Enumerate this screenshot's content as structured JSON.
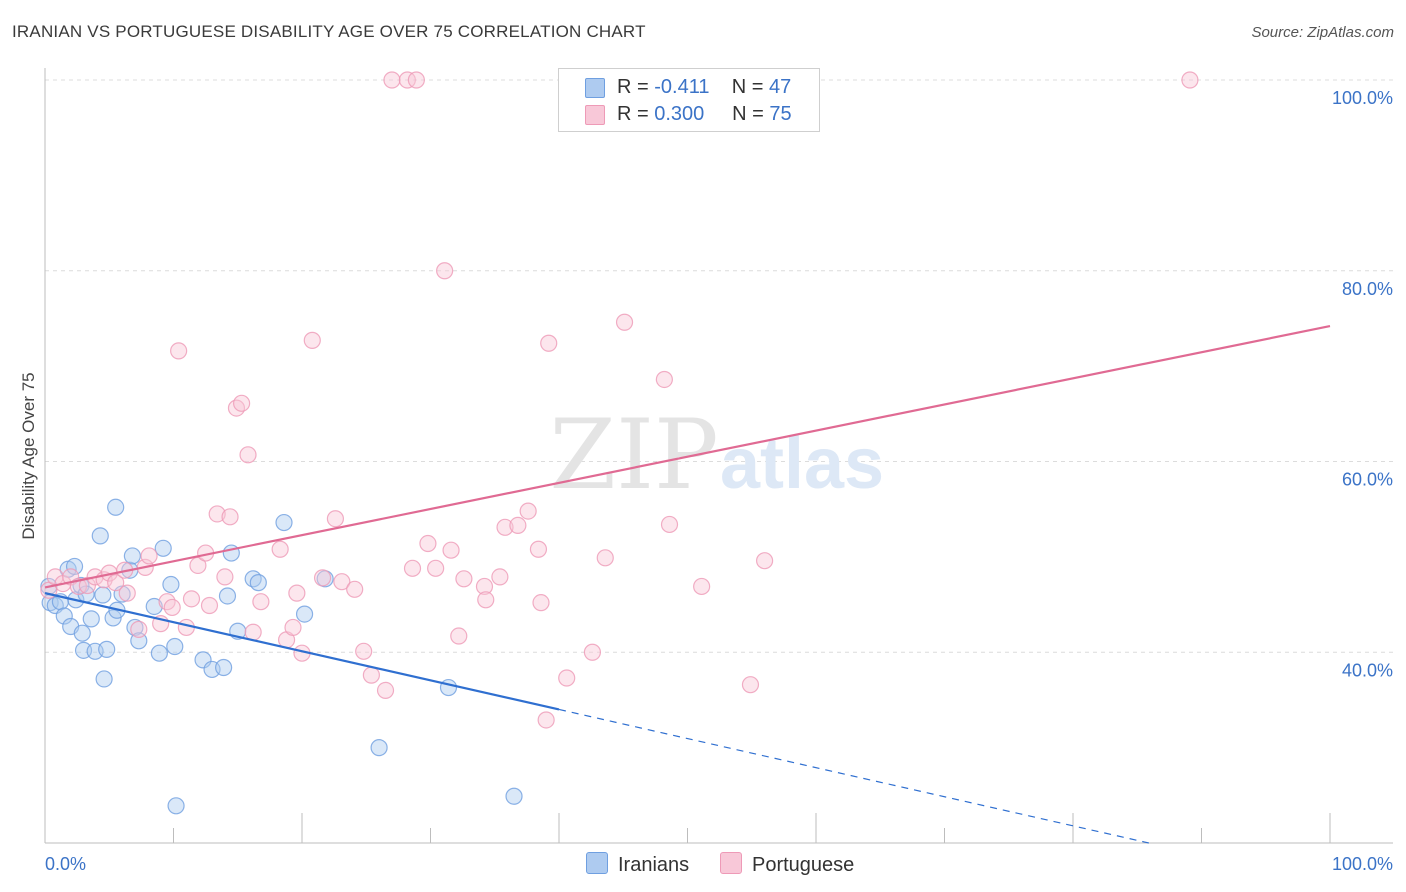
{
  "chart_data": {
    "type": "scatter",
    "title": "IRANIAN VS PORTUGUESE DISABILITY AGE OVER 75 CORRELATION CHART",
    "source": "Source: ZipAtlas.com",
    "xlabel": "",
    "ylabel": "Disability Age Over 75",
    "xlim": [
      0,
      100
    ],
    "ylim": [
      20,
      100
    ],
    "x_tick_labels": [
      "0.0%",
      "100.0%"
    ],
    "y_ticks": [
      40,
      60,
      80,
      100
    ],
    "y_tick_labels": [
      "40.0%",
      "60.0%",
      "80.0%",
      "100.0%"
    ],
    "watermark": {
      "zip": "ZIP",
      "atlas": "atlas"
    },
    "legend": {
      "r_label": "R =",
      "n_label": "N =",
      "rows": [
        {
          "r": "-0.411",
          "n": "47"
        },
        {
          "r": "0.300",
          "n": "75"
        }
      ]
    },
    "series": [
      {
        "name": "Iranians",
        "color": "#6f9fe0",
        "fill": "#aecbf0",
        "line_color": "#2f6fd0",
        "trend": {
          "x0": 0,
          "y0": 46.2,
          "x1": 40,
          "y1": 34.0,
          "dash_to_x": 100
        },
        "points": [
          [
            0.4,
            45.2
          ],
          [
            0.8,
            44.9
          ],
          [
            1.2,
            45.3
          ],
          [
            1.8,
            48.7
          ],
          [
            2.4,
            45.5
          ],
          [
            1.5,
            43.8
          ],
          [
            2.0,
            42.7
          ],
          [
            2.3,
            49.0
          ],
          [
            2.8,
            47.0
          ],
          [
            3.2,
            46.1
          ],
          [
            3.0,
            40.2
          ],
          [
            2.9,
            42.0
          ],
          [
            3.6,
            43.5
          ],
          [
            3.9,
            40.1
          ],
          [
            4.3,
            52.2
          ],
          [
            4.5,
            46.0
          ],
          [
            4.8,
            40.3
          ],
          [
            4.6,
            37.2
          ],
          [
            5.3,
            43.6
          ],
          [
            5.6,
            44.4
          ],
          [
            5.5,
            55.2
          ],
          [
            6.0,
            46.1
          ],
          [
            6.6,
            48.6
          ],
          [
            6.8,
            50.1
          ],
          [
            7.0,
            42.6
          ],
          [
            7.3,
            41.2
          ],
          [
            8.5,
            44.8
          ],
          [
            8.9,
            39.9
          ],
          [
            9.2,
            50.9
          ],
          [
            9.8,
            47.1
          ],
          [
            10.1,
            40.6
          ],
          [
            10.2,
            23.9
          ],
          [
            12.3,
            39.2
          ],
          [
            13.0,
            38.2
          ],
          [
            13.9,
            38.4
          ],
          [
            14.2,
            45.9
          ],
          [
            14.5,
            50.4
          ],
          [
            15.0,
            42.2
          ],
          [
            16.2,
            47.7
          ],
          [
            16.6,
            47.3
          ],
          [
            18.6,
            53.6
          ],
          [
            20.2,
            44.0
          ],
          [
            21.8,
            47.7
          ],
          [
            26.0,
            30.0
          ],
          [
            31.4,
            36.3
          ],
          [
            36.5,
            24.9
          ],
          [
            0.3,
            46.9
          ]
        ]
      },
      {
        "name": "Portuguese",
        "color": "#ee9ab7",
        "fill": "#f8c8d8",
        "line_color": "#e06a93",
        "trend": {
          "x0": 0,
          "y0": 46.8,
          "x1": 100,
          "y1": 74.2
        },
        "points": [
          [
            0.3,
            46.5
          ],
          [
            0.8,
            47.9
          ],
          [
            1.4,
            47.2
          ],
          [
            2.0,
            47.9
          ],
          [
            2.6,
            46.9
          ],
          [
            3.3,
            47.0
          ],
          [
            3.9,
            47.9
          ],
          [
            4.6,
            47.6
          ],
          [
            5.0,
            48.3
          ],
          [
            5.5,
            47.3
          ],
          [
            6.2,
            48.6
          ],
          [
            6.4,
            46.2
          ],
          [
            7.3,
            42.4
          ],
          [
            7.8,
            48.9
          ],
          [
            8.1,
            50.1
          ],
          [
            9.0,
            43.0
          ],
          [
            9.5,
            45.3
          ],
          [
            9.9,
            44.7
          ],
          [
            10.4,
            71.6
          ],
          [
            11.0,
            42.6
          ],
          [
            11.4,
            45.6
          ],
          [
            11.9,
            49.1
          ],
          [
            12.5,
            50.4
          ],
          [
            12.8,
            44.9
          ],
          [
            13.4,
            54.5
          ],
          [
            14.0,
            47.9
          ],
          [
            14.4,
            54.2
          ],
          [
            14.9,
            65.6
          ],
          [
            15.3,
            66.1
          ],
          [
            15.8,
            60.7
          ],
          [
            16.2,
            42.1
          ],
          [
            16.8,
            45.3
          ],
          [
            18.3,
            50.8
          ],
          [
            18.8,
            41.3
          ],
          [
            19.3,
            42.6
          ],
          [
            19.6,
            46.2
          ],
          [
            20.0,
            39.9
          ],
          [
            20.8,
            72.7
          ],
          [
            21.6,
            47.8
          ],
          [
            22.6,
            54.0
          ],
          [
            23.1,
            47.4
          ],
          [
            24.1,
            46.6
          ],
          [
            24.8,
            40.1
          ],
          [
            25.4,
            37.6
          ],
          [
            26.5,
            36.0
          ],
          [
            27.0,
            100.0
          ],
          [
            28.2,
            100.0
          ],
          [
            28.9,
            100.0
          ],
          [
            28.6,
            48.8
          ],
          [
            29.8,
            51.4
          ],
          [
            30.4,
            48.8
          ],
          [
            31.6,
            50.7
          ],
          [
            32.2,
            41.7
          ],
          [
            32.6,
            47.7
          ],
          [
            34.2,
            46.9
          ],
          [
            34.3,
            45.5
          ],
          [
            35.4,
            47.9
          ],
          [
            35.8,
            53.1
          ],
          [
            36.8,
            53.3
          ],
          [
            37.6,
            54.8
          ],
          [
            38.4,
            50.8
          ],
          [
            38.6,
            45.2
          ],
          [
            39.0,
            32.9
          ],
          [
            39.2,
            72.4
          ],
          [
            40.6,
            37.3
          ],
          [
            42.6,
            40.0
          ],
          [
            43.6,
            49.9
          ],
          [
            45.1,
            74.6
          ],
          [
            48.2,
            68.6
          ],
          [
            48.6,
            53.4
          ],
          [
            51.1,
            46.9
          ],
          [
            54.9,
            36.6
          ],
          [
            56.0,
            49.6
          ],
          [
            89.1,
            100.0
          ],
          [
            31.1,
            80.0
          ]
        ]
      }
    ]
  }
}
